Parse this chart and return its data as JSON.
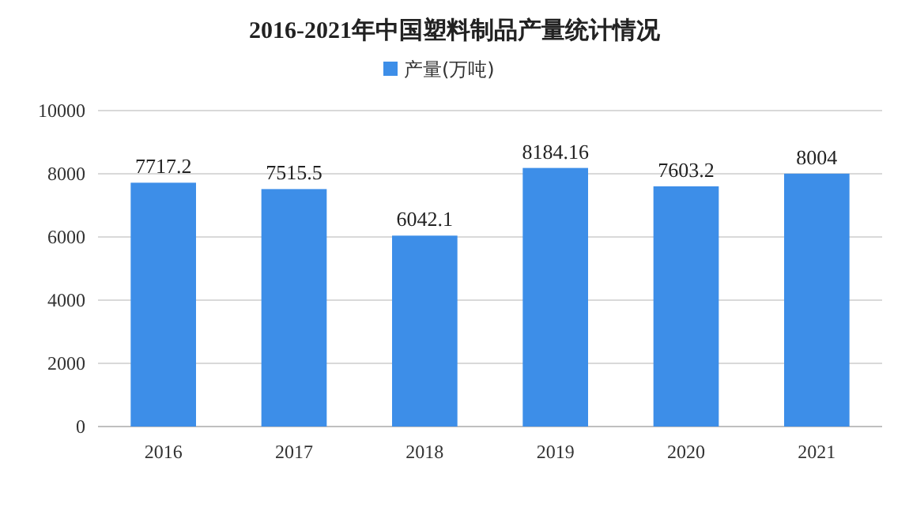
{
  "chart_data": {
    "type": "bar",
    "title": "2016-2021年中国塑料制品产量统计情况",
    "categories": [
      "2016",
      "2017",
      "2018",
      "2019",
      "2020",
      "2021"
    ],
    "series": [
      {
        "name": "产量(万吨)",
        "color": "#3d8ee8",
        "values": [
          7717.2,
          7515.5,
          6042.1,
          8184.16,
          7603.2,
          8004
        ]
      }
    ],
    "ylim": [
      0,
      10000
    ],
    "yticks": [
      0,
      2000,
      4000,
      6000,
      8000,
      10000
    ],
    "grid": "y",
    "legend": "top",
    "data_labels": true
  }
}
